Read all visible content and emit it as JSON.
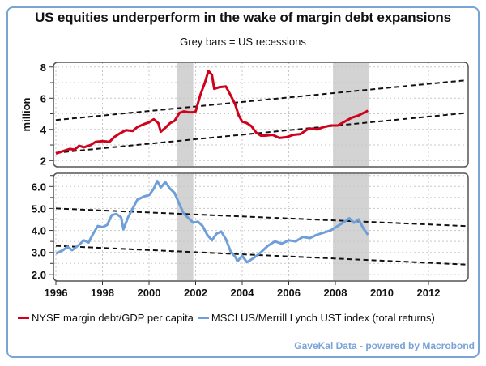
{
  "title": "US equities underperform in the wake of margin debt expansions",
  "subtitle": "Grey bars = US recessions",
  "footer": "GaveKal Data - powered by Macrobond",
  "legend": [
    {
      "label": "NYSE margin debt/GDP per capita",
      "color": "#d0021b"
    },
    {
      "label": "MSCI US/Merrill Lynch UST index (total returns)",
      "color": "#6f9fd8"
    }
  ],
  "chart_data": [
    {
      "type": "line",
      "panel": "top",
      "title": "",
      "xlabel": "",
      "ylabel": "million",
      "xlim": [
        1996,
        2013.7
      ],
      "ylim": [
        1.6,
        8.3
      ],
      "yticks": [
        2,
        4,
        6,
        8
      ],
      "yticks_minor": [
        3,
        5,
        7
      ],
      "grid": true,
      "recessions": [
        [
          2001.2,
          2001.9
        ],
        [
          2007.9,
          2009.45
        ]
      ],
      "series": [
        {
          "name": "NYSE margin debt/GDP per capita",
          "color": "#d0021b",
          "points": [
            [
              1996.0,
              2.45
            ],
            [
              1996.3,
              2.6
            ],
            [
              1996.6,
              2.75
            ],
            [
              1996.8,
              2.7
            ],
            [
              1997.0,
              2.95
            ],
            [
              1997.2,
              2.85
            ],
            [
              1997.5,
              3.0
            ],
            [
              1997.7,
              3.2
            ],
            [
              1998.0,
              3.25
            ],
            [
              1998.3,
              3.2
            ],
            [
              1998.5,
              3.5
            ],
            [
              1998.7,
              3.7
            ],
            [
              1999.0,
              3.95
            ],
            [
              1999.3,
              3.9
            ],
            [
              1999.5,
              4.15
            ],
            [
              1999.8,
              4.35
            ],
            [
              2000.0,
              4.45
            ],
            [
              2000.2,
              4.65
            ],
            [
              2000.4,
              4.4
            ],
            [
              2000.5,
              3.85
            ],
            [
              2000.7,
              4.1
            ],
            [
              2000.9,
              4.4
            ],
            [
              2001.1,
              4.55
            ],
            [
              2001.3,
              5.05
            ],
            [
              2001.5,
              5.15
            ],
            [
              2001.7,
              5.1
            ],
            [
              2001.9,
              5.1
            ],
            [
              2002.0,
              5.15
            ],
            [
              2002.2,
              6.2
            ],
            [
              2002.4,
              7.0
            ],
            [
              2002.55,
              7.75
            ],
            [
              2002.7,
              7.5
            ],
            [
              2002.8,
              6.6
            ],
            [
              2003.0,
              6.7
            ],
            [
              2003.3,
              6.75
            ],
            [
              2003.5,
              6.2
            ],
            [
              2003.7,
              5.6
            ],
            [
              2003.85,
              4.9
            ],
            [
              2004.0,
              4.5
            ],
            [
              2004.2,
              4.4
            ],
            [
              2004.4,
              4.2
            ],
            [
              2004.6,
              3.8
            ],
            [
              2004.8,
              3.6
            ],
            [
              2005.0,
              3.6
            ],
            [
              2005.3,
              3.65
            ],
            [
              2005.6,
              3.45
            ],
            [
              2005.9,
              3.5
            ],
            [
              2006.2,
              3.65
            ],
            [
              2006.5,
              3.7
            ],
            [
              2006.8,
              4.0
            ],
            [
              2007.0,
              4.05
            ],
            [
              2007.2,
              4.0
            ],
            [
              2007.5,
              4.15
            ],
            [
              2007.8,
              4.25
            ],
            [
              2008.1,
              4.25
            ],
            [
              2008.4,
              4.5
            ],
            [
              2008.7,
              4.75
            ],
            [
              2009.0,
              4.9
            ],
            [
              2009.2,
              5.05
            ],
            [
              2009.4,
              5.2
            ]
          ]
        }
      ],
      "trendlines": [
        {
          "from": [
            1996,
            4.6
          ],
          "to": [
            2013.6,
            7.15
          ]
        },
        {
          "from": [
            1996,
            2.5
          ],
          "to": [
            2013.6,
            5.05
          ]
        }
      ]
    },
    {
      "type": "line",
      "panel": "bottom",
      "title": "",
      "xlabel": "",
      "ylabel": "",
      "xlim": [
        1996,
        2013.7
      ],
      "ylim": [
        1.7,
        6.6
      ],
      "yticks": [
        2.0,
        3.0,
        4.0,
        5.0,
        6.0
      ],
      "yticks_minor": [
        2.5,
        3.5,
        4.5,
        5.5,
        6.5
      ],
      "xticks": [
        "1996",
        "1998",
        "2000",
        "2002",
        "2004",
        "2006",
        "2008",
        "2010",
        "2012"
      ],
      "grid": true,
      "recessions": [
        [
          2001.2,
          2001.9
        ],
        [
          2007.9,
          2009.45
        ]
      ],
      "series": [
        {
          "name": "MSCI US/Merrill Lynch UST index (total returns)",
          "color": "#6f9fd8",
          "points": [
            [
              1996.0,
              2.95
            ],
            [
              1996.3,
              3.1
            ],
            [
              1996.5,
              3.25
            ],
            [
              1996.7,
              3.1
            ],
            [
              1997.0,
              3.35
            ],
            [
              1997.2,
              3.55
            ],
            [
              1997.4,
              3.45
            ],
            [
              1997.6,
              3.85
            ],
            [
              1997.8,
              4.2
            ],
            [
              1998.0,
              4.15
            ],
            [
              1998.2,
              4.25
            ],
            [
              1998.4,
              4.7
            ],
            [
              1998.6,
              4.75
            ],
            [
              1998.8,
              4.6
            ],
            [
              1998.9,
              4.05
            ],
            [
              1999.1,
              4.6
            ],
            [
              1999.3,
              5.0
            ],
            [
              1999.5,
              5.4
            ],
            [
              1999.8,
              5.55
            ],
            [
              2000.0,
              5.6
            ],
            [
              2000.2,
              5.9
            ],
            [
              2000.35,
              6.25
            ],
            [
              2000.5,
              5.95
            ],
            [
              2000.7,
              6.2
            ],
            [
              2000.9,
              5.9
            ],
            [
              2001.1,
              5.7
            ],
            [
              2001.3,
              5.2
            ],
            [
              2001.5,
              4.75
            ],
            [
              2001.7,
              4.55
            ],
            [
              2001.9,
              4.35
            ],
            [
              2002.1,
              4.4
            ],
            [
              2002.3,
              4.2
            ],
            [
              2002.5,
              3.8
            ],
            [
              2002.7,
              3.55
            ],
            [
              2002.9,
              3.85
            ],
            [
              2003.1,
              3.95
            ],
            [
              2003.3,
              3.6
            ],
            [
              2003.5,
              3.05
            ],
            [
              2003.7,
              2.8
            ],
            [
              2003.8,
              2.6
            ],
            [
              2004.0,
              2.85
            ],
            [
              2004.2,
              2.55
            ],
            [
              2004.5,
              2.75
            ],
            [
              2004.8,
              3.0
            ],
            [
              2005.1,
              3.3
            ],
            [
              2005.4,
              3.5
            ],
            [
              2005.7,
              3.4
            ],
            [
              2006.0,
              3.55
            ],
            [
              2006.3,
              3.5
            ],
            [
              2006.6,
              3.7
            ],
            [
              2006.9,
              3.65
            ],
            [
              2007.2,
              3.8
            ],
            [
              2007.5,
              3.9
            ],
            [
              2007.8,
              4.0
            ],
            [
              2008.1,
              4.2
            ],
            [
              2008.4,
              4.4
            ],
            [
              2008.6,
              4.55
            ],
            [
              2008.8,
              4.35
            ],
            [
              2009.0,
              4.5
            ],
            [
              2009.2,
              4.1
            ],
            [
              2009.4,
              3.8
            ]
          ]
        }
      ],
      "trendlines": [
        {
          "from": [
            1996,
            5.0
          ],
          "to": [
            2013.6,
            4.2
          ]
        },
        {
          "from": [
            1996,
            3.3
          ],
          "to": [
            2013.6,
            2.45
          ]
        }
      ]
    }
  ]
}
